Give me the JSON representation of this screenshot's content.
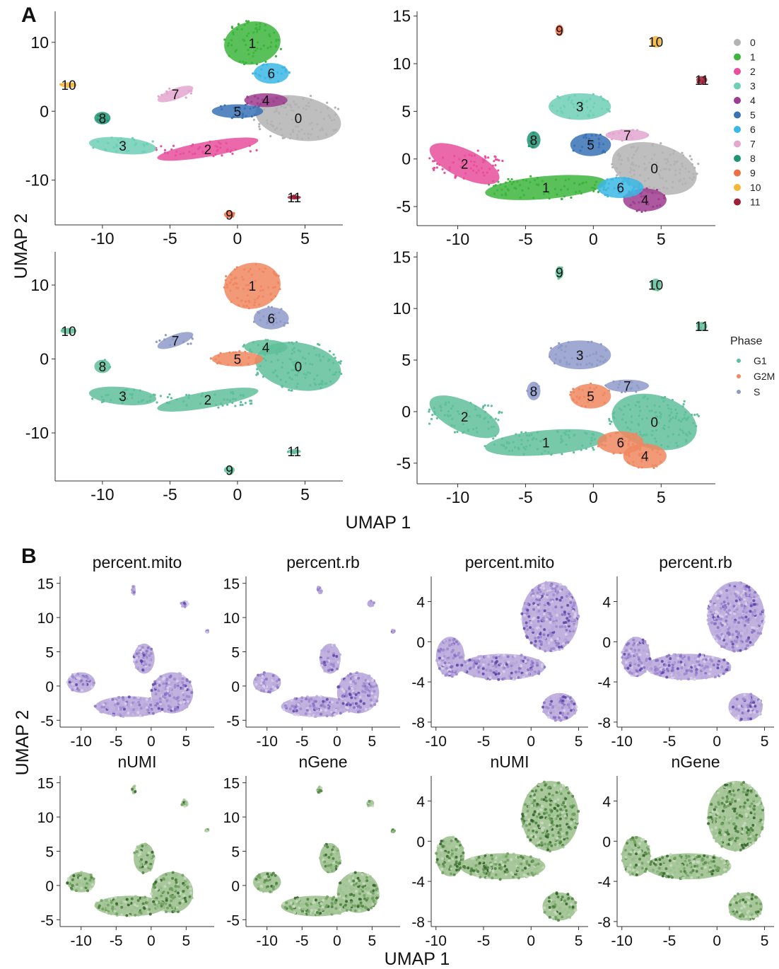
{
  "figure": {
    "panel_labels": [
      "A",
      "B"
    ],
    "a_xlabel": "UMAP 1",
    "a_ylabel": "UMAP 2",
    "b_xlabel": "UMAP 1",
    "b_ylabel": "UMAP 2",
    "cluster_legend_title": "",
    "phase_legend_title": "Phase"
  },
  "cluster_colors": [
    "#b3b3b3",
    "#3db53d",
    "#e84f9c",
    "#6ecfb6",
    "#9e3c8f",
    "#3a72b6",
    "#3cb7e4",
    "#e3a6cf",
    "#1d9473",
    "#ec7046",
    "#f3b63a",
    "#9e1f36"
  ],
  "phase_colors": {
    "G1": "#5fbf9a",
    "G2M": "#f08760",
    "S": "#8e9ac9"
  },
  "chart_data": [
    {
      "id": "A-top-left",
      "type": "scatter",
      "color_by": "cluster",
      "xlim": [
        -13.5,
        7.8
      ],
      "ylim": [
        -16.5,
        14.5
      ],
      "x_ticks": [
        -10,
        -5,
        0,
        5
      ],
      "y_ticks": [
        -10,
        0,
        10
      ],
      "x_tick_labels": [
        "-10",
        "-5",
        "0",
        "5"
      ],
      "y_tick_labels": [
        "-10",
        "0",
        "10"
      ],
      "clusters": [
        {
          "label": "0",
          "x": 4.5,
          "y": -1,
          "rx": 3.2,
          "ry": 3.2,
          "angle": -10
        },
        {
          "label": "1",
          "x": 1.1,
          "y": 9.9,
          "rx": 2.1,
          "ry": 3.1,
          "angle": 10
        },
        {
          "label": "2",
          "x": -2.2,
          "y": -5.5,
          "rx": 3.8,
          "ry": 1.1,
          "angle": 10
        },
        {
          "label": "3",
          "x": -8.5,
          "y": -5,
          "rx": 2.5,
          "ry": 1.2,
          "angle": -5
        },
        {
          "label": "4",
          "x": 2.1,
          "y": 1.6,
          "rx": 1.6,
          "ry": 1.0,
          "angle": 0
        },
        {
          "label": "5",
          "x": 0,
          "y": 0,
          "rx": 1.9,
          "ry": 1.0,
          "angle": 0
        },
        {
          "label": "6",
          "x": 2.5,
          "y": 5.5,
          "rx": 1.3,
          "ry": 1.5,
          "angle": 0
        },
        {
          "label": "7",
          "x": -4.6,
          "y": 2.5,
          "rx": 1.4,
          "ry": 0.8,
          "angle": 20
        },
        {
          "label": "8",
          "x": -10,
          "y": -1,
          "rx": 0.6,
          "ry": 0.9,
          "angle": 0
        },
        {
          "label": "9",
          "x": -0.6,
          "y": -15,
          "rx": 0.4,
          "ry": 0.5,
          "angle": 0
        },
        {
          "label": "10",
          "x": -12.5,
          "y": 3.8,
          "rx": 0.6,
          "ry": 0.4,
          "angle": 0
        },
        {
          "label": "11",
          "x": 4.2,
          "y": -12.5,
          "rx": 0.5,
          "ry": 0.3,
          "angle": 0
        }
      ]
    },
    {
      "id": "A-top-right",
      "type": "scatter",
      "color_by": "cluster",
      "xlim": [
        -13,
        9
      ],
      "ylim": [
        -7,
        15.5
      ],
      "x_ticks": [
        -10,
        -5,
        0,
        5
      ],
      "y_ticks": [
        -5,
        0,
        5,
        10,
        15
      ],
      "x_tick_labels": [
        "-10",
        "-5",
        "0",
        "5"
      ],
      "y_tick_labels": [
        "-5",
        "0",
        "5",
        "10",
        "15"
      ],
      "clusters": [
        {
          "label": "0",
          "x": 4.5,
          "y": -1,
          "rx": 3.2,
          "ry": 2.6,
          "angle": -15
        },
        {
          "label": "1",
          "x": -3.5,
          "y": -3,
          "rx": 4.5,
          "ry": 1.2,
          "angle": 5
        },
        {
          "label": "2",
          "x": -9.5,
          "y": -0.5,
          "rx": 2.8,
          "ry": 1.5,
          "angle": -25
        },
        {
          "label": "3",
          "x": -1,
          "y": 5.5,
          "rx": 2.3,
          "ry": 1.4,
          "angle": 0
        },
        {
          "label": "4",
          "x": 3.8,
          "y": -4.3,
          "rx": 1.6,
          "ry": 1.2,
          "angle": 0
        },
        {
          "label": "5",
          "x": -0.2,
          "y": 1.5,
          "rx": 1.5,
          "ry": 1.2,
          "angle": 0
        },
        {
          "label": "6",
          "x": 2,
          "y": -3,
          "rx": 1.7,
          "ry": 1.1,
          "angle": 0
        },
        {
          "label": "7",
          "x": 2.5,
          "y": 2.5,
          "rx": 1.6,
          "ry": 0.6,
          "angle": 0
        },
        {
          "label": "8",
          "x": -4.4,
          "y": 2,
          "rx": 0.5,
          "ry": 0.9,
          "angle": 0
        },
        {
          "label": "9",
          "x": -2.5,
          "y": 13.5,
          "rx": 0.3,
          "ry": 0.6,
          "angle": 0
        },
        {
          "label": "10",
          "x": 4.6,
          "y": 12.3,
          "rx": 0.4,
          "ry": 0.6,
          "angle": 0
        },
        {
          "label": "11",
          "x": 8,
          "y": 8.3,
          "rx": 0.4,
          "ry": 0.4,
          "angle": 0
        }
      ]
    },
    {
      "id": "A-bottom-left",
      "type": "scatter",
      "color_by": "phase",
      "xlim": [
        -13.5,
        7.8
      ],
      "ylim": [
        -16.5,
        14.5
      ],
      "x_ticks": [
        -10,
        -5,
        0,
        5
      ],
      "y_ticks": [
        -10,
        0,
        10
      ],
      "x_tick_labels": [
        "-10",
        "-5",
        "0",
        "5"
      ],
      "y_tick_labels": [
        "-10",
        "0",
        "10"
      ],
      "clusters": [
        {
          "label": "0",
          "x": 4.5,
          "y": -1,
          "rx": 3.2,
          "ry": 3.2,
          "angle": -10,
          "phase": "G1"
        },
        {
          "label": "1",
          "x": 1.1,
          "y": 9.9,
          "rx": 2.1,
          "ry": 3.1,
          "angle": 10,
          "phase": "G2M"
        },
        {
          "label": "2",
          "x": -2.2,
          "y": -5.5,
          "rx": 3.8,
          "ry": 1.1,
          "angle": 10,
          "phase": "G1"
        },
        {
          "label": "3",
          "x": -8.5,
          "y": -5,
          "rx": 2.5,
          "ry": 1.2,
          "angle": -5,
          "phase": "G1"
        },
        {
          "label": "4",
          "x": 2.1,
          "y": 1.6,
          "rx": 1.6,
          "ry": 1.0,
          "angle": 0,
          "phase": "G1"
        },
        {
          "label": "5",
          "x": 0,
          "y": 0,
          "rx": 1.9,
          "ry": 1.0,
          "angle": 0,
          "phase": "G2M"
        },
        {
          "label": "6",
          "x": 2.5,
          "y": 5.5,
          "rx": 1.3,
          "ry": 1.5,
          "angle": 0,
          "phase": "S"
        },
        {
          "label": "7",
          "x": -4.6,
          "y": 2.5,
          "rx": 1.4,
          "ry": 0.8,
          "angle": 20,
          "phase": "S"
        },
        {
          "label": "8",
          "x": -10,
          "y": -1,
          "rx": 0.6,
          "ry": 0.9,
          "angle": 0,
          "phase": "G1"
        },
        {
          "label": "9",
          "x": -0.6,
          "y": -15,
          "rx": 0.4,
          "ry": 0.5,
          "angle": 0,
          "phase": "G1"
        },
        {
          "label": "10",
          "x": -12.5,
          "y": 3.8,
          "rx": 0.6,
          "ry": 0.4,
          "angle": 0,
          "phase": "G1"
        },
        {
          "label": "11",
          "x": 4.2,
          "y": -12.5,
          "rx": 0.5,
          "ry": 0.3,
          "angle": 0,
          "phase": "G1"
        }
      ]
    },
    {
      "id": "A-bottom-right",
      "type": "scatter",
      "color_by": "phase",
      "xlim": [
        -13,
        9
      ],
      "ylim": [
        -7,
        15.5
      ],
      "x_ticks": [
        -10,
        -5,
        0,
        5
      ],
      "y_ticks": [
        -5,
        0,
        5,
        10,
        15
      ],
      "x_tick_labels": [
        "-10",
        "-5",
        "0",
        "5"
      ],
      "y_tick_labels": [
        "-5",
        "0",
        "5",
        "10",
        "15"
      ],
      "clusters": [
        {
          "label": "0",
          "x": 4.5,
          "y": -1,
          "rx": 3.2,
          "ry": 2.6,
          "angle": -15,
          "phase": "G1"
        },
        {
          "label": "1",
          "x": -3.5,
          "y": -3,
          "rx": 4.5,
          "ry": 1.2,
          "angle": 5,
          "phase": "G1"
        },
        {
          "label": "2",
          "x": -9.5,
          "y": -0.5,
          "rx": 2.8,
          "ry": 1.5,
          "angle": -25,
          "phase": "G1"
        },
        {
          "label": "3",
          "x": -1,
          "y": 5.5,
          "rx": 2.3,
          "ry": 1.4,
          "angle": 0,
          "phase": "S"
        },
        {
          "label": "4",
          "x": 3.8,
          "y": -4.3,
          "rx": 1.6,
          "ry": 1.2,
          "angle": 0,
          "phase": "G2M"
        },
        {
          "label": "5",
          "x": -0.2,
          "y": 1.5,
          "rx": 1.5,
          "ry": 1.2,
          "angle": 0,
          "phase": "G2M"
        },
        {
          "label": "6",
          "x": 2,
          "y": -3,
          "rx": 1.7,
          "ry": 1.1,
          "angle": 0,
          "phase": "G2M"
        },
        {
          "label": "7",
          "x": 2.5,
          "y": 2.5,
          "rx": 1.6,
          "ry": 0.6,
          "angle": 0,
          "phase": "S"
        },
        {
          "label": "8",
          "x": -4.4,
          "y": 2,
          "rx": 0.5,
          "ry": 0.9,
          "angle": 0,
          "phase": "S"
        },
        {
          "label": "9",
          "x": -2.5,
          "y": 13.5,
          "rx": 0.3,
          "ry": 0.6,
          "angle": 0,
          "phase": "G1"
        },
        {
          "label": "10",
          "x": 4.6,
          "y": 12.3,
          "rx": 0.4,
          "ry": 0.6,
          "angle": 0,
          "phase": "G1"
        },
        {
          "label": "11",
          "x": 8,
          "y": 8.3,
          "rx": 0.4,
          "ry": 0.4,
          "angle": 0,
          "phase": "G1"
        }
      ]
    },
    {
      "id": "B-1",
      "type": "scatter",
      "title": "percent.mito",
      "palette": "purple",
      "xlim": [
        -13,
        9
      ],
      "ylim": [
        -6,
        16
      ],
      "x_ticks": [
        -10,
        -5,
        0,
        5
      ],
      "y_ticks": [
        -5,
        0,
        5,
        10,
        15
      ],
      "x_tick_labels": [
        "-10",
        "-5",
        "0",
        "5"
      ],
      "y_tick_labels": [
        "-5",
        "0",
        "5",
        "10",
        "15"
      ],
      "blobs": [
        {
          "x": 3,
          "y": -1,
          "rx": 3,
          "ry": 3
        },
        {
          "x": -3,
          "y": -3,
          "rx": 5,
          "ry": 1.5
        },
        {
          "x": -10,
          "y": 0.5,
          "rx": 2,
          "ry": 1.5
        },
        {
          "x": -1,
          "y": 4,
          "rx": 1.5,
          "ry": 2.2
        },
        {
          "x": -2.5,
          "y": 14,
          "rx": 0.3,
          "ry": 0.6
        },
        {
          "x": 4.8,
          "y": 12,
          "rx": 0.5,
          "ry": 0.5
        },
        {
          "x": 8,
          "y": 8,
          "rx": 0.2,
          "ry": 0.2
        }
      ]
    },
    {
      "id": "B-2",
      "type": "scatter",
      "title": "percent.rb",
      "palette": "purple",
      "xlim": [
        -13,
        9
      ],
      "ylim": [
        -6,
        16
      ],
      "x_ticks": [
        -10,
        -5,
        0,
        5
      ],
      "y_ticks": [
        -5,
        0,
        5,
        10,
        15
      ],
      "x_tick_labels": [
        "-10",
        "-5",
        "0",
        "5"
      ],
      "y_tick_labels": [
        "-5",
        "0",
        "5",
        "10",
        "15"
      ],
      "blobs": [
        {
          "x": 3,
          "y": -1,
          "rx": 3,
          "ry": 3
        },
        {
          "x": -3,
          "y": -3,
          "rx": 5,
          "ry": 1.5
        },
        {
          "x": -10,
          "y": 0.5,
          "rx": 2,
          "ry": 1.5
        },
        {
          "x": -1,
          "y": 4,
          "rx": 1.5,
          "ry": 2.2
        },
        {
          "x": -2.5,
          "y": 14,
          "rx": 0.3,
          "ry": 0.6
        },
        {
          "x": 4.8,
          "y": 12,
          "rx": 0.5,
          "ry": 0.5
        },
        {
          "x": 8,
          "y": 8,
          "rx": 0.2,
          "ry": 0.2
        }
      ]
    },
    {
      "id": "B-3",
      "type": "scatter",
      "title": "percent.mito",
      "palette": "purple",
      "xlim": [
        -10.5,
        6
      ],
      "ylim": [
        -8.5,
        6.5
      ],
      "x_ticks": [
        -10,
        -5,
        0,
        5
      ],
      "y_ticks": [
        -8,
        -4,
        0,
        4
      ],
      "x_tick_labels": [
        "-10",
        "-5",
        "0",
        "5"
      ],
      "y_tick_labels": [
        "-8",
        "-4",
        "0",
        "4"
      ],
      "blobs": [
        {
          "x": 2,
          "y": 2.5,
          "rx": 3,
          "ry": 3.5
        },
        {
          "x": -3,
          "y": -2.5,
          "rx": 4.5,
          "ry": 1.3
        },
        {
          "x": -8.5,
          "y": -1.5,
          "rx": 1.5,
          "ry": 2
        },
        {
          "x": 3,
          "y": -6.5,
          "rx": 1.8,
          "ry": 1.4
        }
      ]
    },
    {
      "id": "B-4",
      "type": "scatter",
      "title": "percent.rb",
      "palette": "purple",
      "xlim": [
        -10.5,
        6
      ],
      "ylim": [
        -8.5,
        6.5
      ],
      "x_ticks": [
        -10,
        -5,
        0,
        5
      ],
      "y_ticks": [
        -8,
        -4,
        0,
        4
      ],
      "x_tick_labels": [
        "-10",
        "-5",
        "0",
        "5"
      ],
      "y_tick_labels": [
        "-8",
        "-4",
        "0",
        "4"
      ],
      "blobs": [
        {
          "x": 2,
          "y": 2.5,
          "rx": 3,
          "ry": 3.5
        },
        {
          "x": -3,
          "y": -2.5,
          "rx": 4.5,
          "ry": 1.3
        },
        {
          "x": -8.5,
          "y": -1.5,
          "rx": 1.5,
          "ry": 2
        },
        {
          "x": 3,
          "y": -6.5,
          "rx": 1.8,
          "ry": 1.4
        }
      ]
    },
    {
      "id": "B-5",
      "type": "scatter",
      "title": "nUMI",
      "palette": "green",
      "xlim": [
        -13,
        9
      ],
      "ylim": [
        -6,
        16
      ],
      "x_ticks": [
        -10,
        -5,
        0,
        5
      ],
      "y_ticks": [
        -5,
        0,
        5,
        10,
        15
      ],
      "x_tick_labels": [
        "-10",
        "-5",
        "0",
        "5"
      ],
      "y_tick_labels": [
        "-5",
        "0",
        "5",
        "10",
        "15"
      ],
      "blobs": [
        {
          "x": 3,
          "y": -1,
          "rx": 3,
          "ry": 3
        },
        {
          "x": -3,
          "y": -3,
          "rx": 5,
          "ry": 1.5
        },
        {
          "x": -10,
          "y": 0.5,
          "rx": 2,
          "ry": 1.5
        },
        {
          "x": -1,
          "y": 4,
          "rx": 1.5,
          "ry": 2.2
        },
        {
          "x": -2.5,
          "y": 14,
          "rx": 0.3,
          "ry": 0.6
        },
        {
          "x": 4.8,
          "y": 12,
          "rx": 0.5,
          "ry": 0.5
        },
        {
          "x": 8,
          "y": 8,
          "rx": 0.2,
          "ry": 0.2
        }
      ]
    },
    {
      "id": "B-6",
      "type": "scatter",
      "title": "nGene",
      "palette": "green",
      "xlim": [
        -13,
        9
      ],
      "ylim": [
        -6,
        16
      ],
      "x_ticks": [
        -10,
        -5,
        0,
        5
      ],
      "y_ticks": [
        -5,
        0,
        5,
        10,
        15
      ],
      "x_tick_labels": [
        "-10",
        "-5",
        "0",
        "5"
      ],
      "y_tick_labels": [
        "-5",
        "0",
        "5",
        "10",
        "15"
      ],
      "blobs": [
        {
          "x": 3,
          "y": -1,
          "rx": 3,
          "ry": 3
        },
        {
          "x": -3,
          "y": -3,
          "rx": 5,
          "ry": 1.5
        },
        {
          "x": -10,
          "y": 0.5,
          "rx": 2,
          "ry": 1.5
        },
        {
          "x": -1,
          "y": 4,
          "rx": 1.5,
          "ry": 2.2
        },
        {
          "x": -2.5,
          "y": 14,
          "rx": 0.3,
          "ry": 0.6
        },
        {
          "x": 4.8,
          "y": 12,
          "rx": 0.5,
          "ry": 0.5
        },
        {
          "x": 8,
          "y": 8,
          "rx": 0.2,
          "ry": 0.2
        }
      ]
    },
    {
      "id": "B-7",
      "type": "scatter",
      "title": "nUMI",
      "palette": "green",
      "xlim": [
        -10.5,
        6
      ],
      "ylim": [
        -8.5,
        6.5
      ],
      "x_ticks": [
        -10,
        -5,
        0,
        5
      ],
      "y_ticks": [
        -8,
        -4,
        0,
        4
      ],
      "x_tick_labels": [
        "-10",
        "-5",
        "0",
        "5"
      ],
      "y_tick_labels": [
        "-8",
        "-4",
        "0",
        "4"
      ],
      "blobs": [
        {
          "x": 2,
          "y": 2.5,
          "rx": 3,
          "ry": 3.5
        },
        {
          "x": -3,
          "y": -2.5,
          "rx": 4.5,
          "ry": 1.3
        },
        {
          "x": -8.5,
          "y": -1.5,
          "rx": 1.5,
          "ry": 2
        },
        {
          "x": 3,
          "y": -6.5,
          "rx": 1.8,
          "ry": 1.4
        }
      ]
    },
    {
      "id": "B-8",
      "type": "scatter",
      "title": "nGene",
      "palette": "green",
      "xlim": [
        -10.5,
        6
      ],
      "ylim": [
        -8.5,
        6.5
      ],
      "x_ticks": [
        -10,
        -5,
        0,
        5
      ],
      "y_ticks": [
        -8,
        -4,
        0,
        4
      ],
      "x_tick_labels": [
        "-10",
        "-5",
        "0",
        "5"
      ],
      "y_tick_labels": [
        "-8",
        "-4",
        "0",
        "4"
      ],
      "blobs": [
        {
          "x": 2,
          "y": 2.5,
          "rx": 3,
          "ry": 3.5
        },
        {
          "x": -3,
          "y": -2.5,
          "rx": 4.5,
          "ry": 1.3
        },
        {
          "x": -8.5,
          "y": -1.5,
          "rx": 1.5,
          "ry": 2
        },
        {
          "x": 3,
          "y": -6.5,
          "rx": 1.8,
          "ry": 1.4
        }
      ]
    }
  ],
  "legends": {
    "clusters": [
      "0",
      "1",
      "2",
      "3",
      "4",
      "5",
      "6",
      "7",
      "8",
      "9",
      "10",
      "11"
    ],
    "phases": [
      "G1",
      "G2M",
      "S"
    ]
  }
}
